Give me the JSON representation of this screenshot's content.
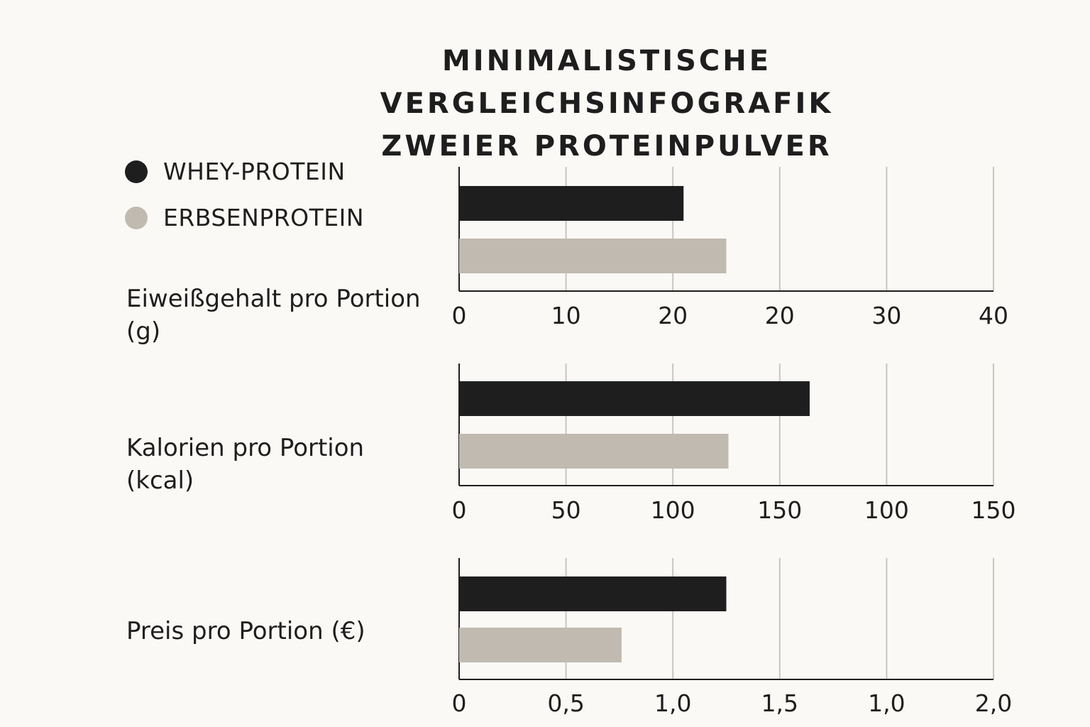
{
  "title_lines": [
    "MINIMALISTISCHE VERGLEICHSINFOGRAFIK",
    "ZWEIER PROTEINPULVER"
  ],
  "legend": [
    {
      "label": "WHEY-PROTEIN",
      "color": "#1e1e1e"
    },
    {
      "label": "ERBSENPROTEIN",
      "color": "#c0bab0"
    }
  ],
  "metrics": [
    {
      "label": "Eiweißgehalt pro Portion (g)"
    },
    {
      "label": "Kalorien pro Portion (kcal)"
    },
    {
      "label": "Preis pro Portion (€)"
    }
  ],
  "chart_data": [
    {
      "type": "bar",
      "orientation": "horizontal",
      "series": [
        {
          "values": [
            21
          ]
        },
        {
          "values": [
            25
          ]
        }
      ],
      "xlim": [
        0,
        50
      ],
      "x_ticks": [
        "0",
        "10",
        "20",
        "20",
        "30",
        "40"
      ],
      "grid": true
    },
    {
      "type": "bar",
      "orientation": "horizontal",
      "series": [
        {
          "values": [
            164
          ]
        },
        {
          "values": [
            126
          ]
        }
      ],
      "xlim": [
        0,
        250
      ],
      "x_ticks": [
        "0",
        "50",
        "100",
        "150",
        "100",
        "150"
      ],
      "grid": true
    },
    {
      "type": "bar",
      "orientation": "horizontal",
      "series": [
        {
          "values": [
            1.25
          ]
        },
        {
          "values": [
            0.76
          ]
        }
      ],
      "xlim": [
        0,
        2.5
      ],
      "x_ticks": [
        "0",
        "0,5",
        "1,0",
        "1,5",
        "1,0",
        "2,0"
      ],
      "grid": true
    }
  ]
}
